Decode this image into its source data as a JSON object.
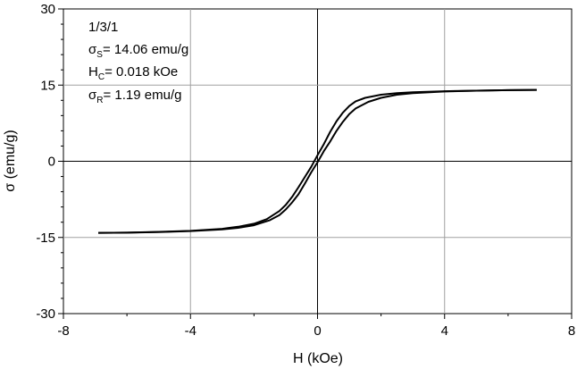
{
  "chart_data": {
    "type": "line",
    "title": "",
    "xlabel": "H (kOe)",
    "ylabel": "σ (emu/g)",
    "xlim": [
      -8,
      8
    ],
    "ylim": [
      -30,
      30
    ],
    "xticks": [
      -8,
      -4,
      0,
      4,
      8
    ],
    "yticks": [
      -30,
      -15,
      0,
      15,
      30
    ],
    "grid": true,
    "zero_lines": true,
    "annotation": {
      "sample": "1/3/1",
      "ms": {
        "symbol": "σ",
        "sub": "S",
        "text": "= 14.06 emu/g"
      },
      "hc": {
        "symbol": "H",
        "sub": "C",
        "text": "= 0.018 kOe"
      },
      "mr": {
        "symbol": "σ",
        "sub": "R",
        "text": "= 1.19 emu/g"
      }
    },
    "series": [
      {
        "x": [
          -6.9,
          -6.0,
          -5.0,
          -4.0,
          -3.0,
          -2.5,
          -2.0,
          -1.6,
          -1.2,
          -1.0,
          -0.8,
          -0.6,
          -0.4,
          -0.2,
          0.0,
          0.2,
          0.4,
          0.6,
          0.8,
          1.0,
          1.2,
          1.5,
          2.0,
          2.5,
          3.0,
          4.0,
          5.0,
          6.0,
          6.9
        ],
        "y": [
          -14.1,
          -14.05,
          -13.9,
          -13.7,
          -13.3,
          -12.9,
          -12.3,
          -11.4,
          -9.8,
          -8.6,
          -7.0,
          -5.1,
          -3.1,
          -1.1,
          1.2,
          3.4,
          5.8,
          7.9,
          9.6,
          10.9,
          11.8,
          12.5,
          13.1,
          13.4,
          13.6,
          13.8,
          13.9,
          14.0,
          14.06
        ]
      },
      {
        "x": [
          6.9,
          6.0,
          5.0,
          4.0,
          3.0,
          2.5,
          2.0,
          1.6,
          1.2,
          1.0,
          0.8,
          0.6,
          0.4,
          0.2,
          0.0,
          -0.2,
          -0.4,
          -0.6,
          -0.8,
          -1.0,
          -1.2,
          -1.5,
          -2.0,
          -2.5,
          -3.0,
          -4.0,
          -5.0,
          -6.0,
          -6.9
        ],
        "y": [
          14.06,
          14.0,
          13.9,
          13.75,
          13.4,
          13.1,
          12.5,
          11.7,
          10.4,
          9.3,
          7.8,
          6.0,
          3.9,
          2.0,
          -0.2,
          -2.2,
          -4.4,
          -6.5,
          -8.1,
          -9.5,
          -10.6,
          -11.6,
          -12.6,
          -13.1,
          -13.4,
          -13.75,
          -13.95,
          -14.05,
          -14.1
        ]
      }
    ]
  }
}
